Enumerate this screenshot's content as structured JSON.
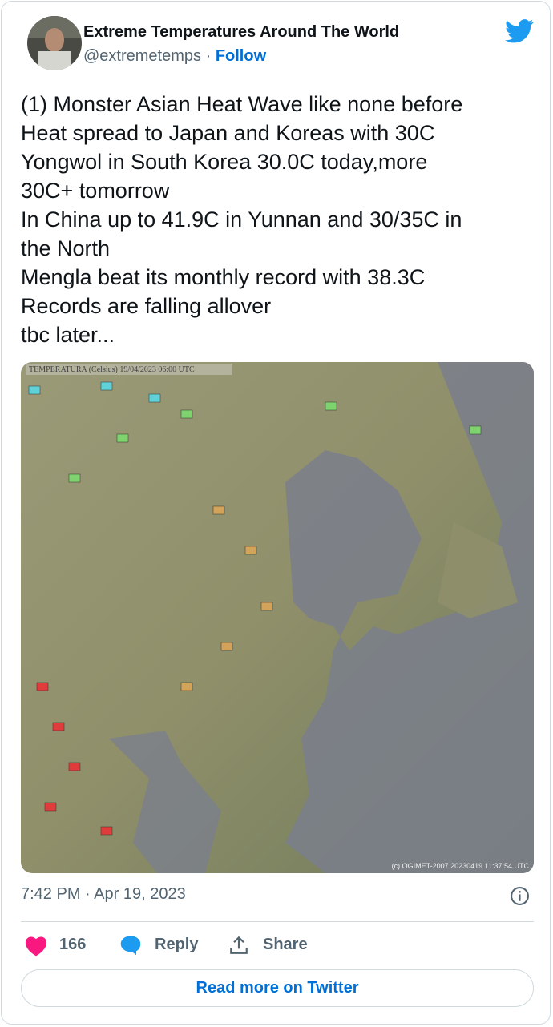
{
  "header": {
    "name": "Extreme Temperatures Around The World",
    "handle": "@extremetemps",
    "separator": "·",
    "follow": "Follow"
  },
  "tweet": {
    "lines": [
      "(1) Monster Asian Heat Wave like none before",
      "Heat spread to Japan and Koreas with 30C",
      "Yongwol in South Korea 30.0C today,more",
      "30C+ tomorrow",
      "In China up to 41.9C in Yunnan and 30/35C in",
      "the North",
      "Mengla beat its monthly record with 38.3C",
      "Records are falling allover",
      "tbc later..."
    ]
  },
  "map": {
    "title": "TEMPERATURA (Celsius)  19/04/2023 06:00 UTC",
    "credit": "(c) OGIMET-2007 20230419 11:37:54 UTC"
  },
  "meta": {
    "time": "7:42 PM",
    "separator": "·",
    "date": "Apr 19, 2023"
  },
  "actions": {
    "likes": "166",
    "reply": "Reply",
    "share": "Share"
  },
  "button": {
    "label": "Read more on Twitter"
  }
}
